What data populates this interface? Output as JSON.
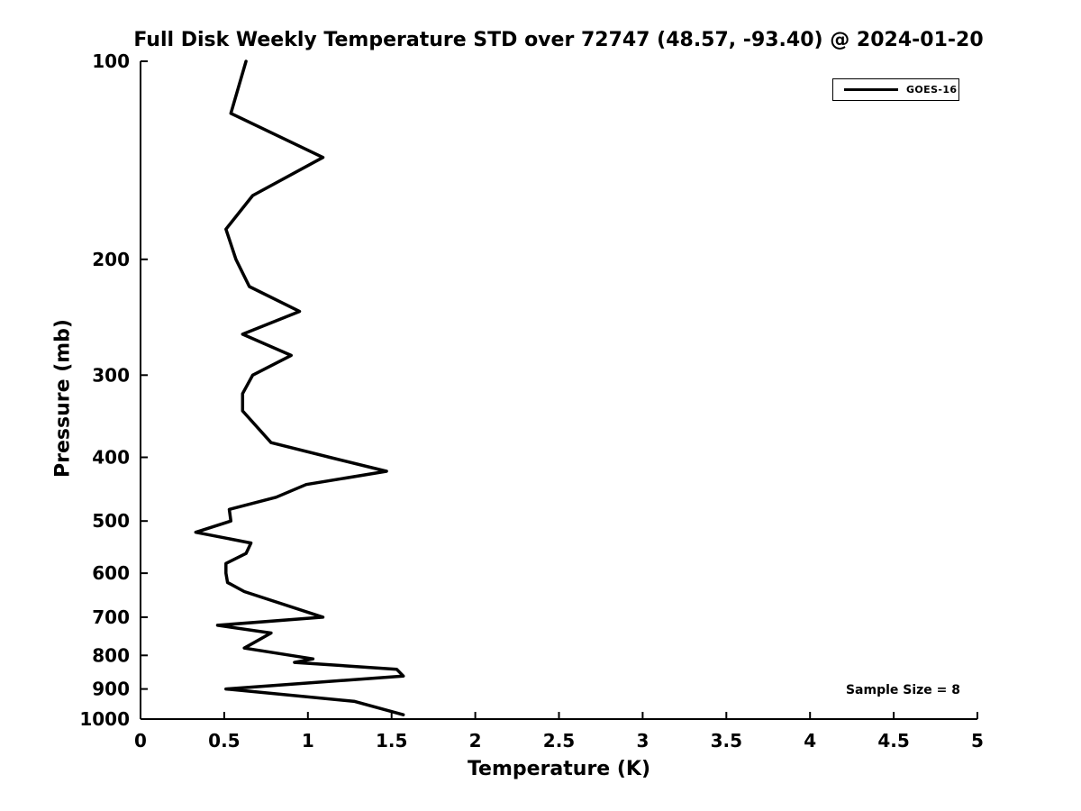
{
  "page": {
    "background": "#ffffff",
    "foreground": "#000000"
  },
  "chart_data": {
    "type": "line",
    "title": "Full Disk Weekly Temperature STD over 72747 (48.57, -93.40) @ 2024-01-20",
    "xlabel": "Temperature (K)",
    "ylabel": "Pressure (mb)",
    "xlim": [
      0,
      5
    ],
    "xticks": [
      0,
      0.5,
      1,
      1.5,
      2,
      2.5,
      3,
      3.5,
      4,
      4.5,
      5
    ],
    "xtick_labels": [
      "0",
      "0.5",
      "1",
      "1.5",
      "2",
      "2.5",
      "3",
      "3.5",
      "4",
      "4.5",
      "5"
    ],
    "yscale": "log",
    "y_inverted": true,
    "ylim": [
      100,
      1000
    ],
    "yticks": [
      100,
      200,
      300,
      400,
      500,
      600,
      700,
      800,
      900,
      1000
    ],
    "ytick_labels": [
      "100",
      "200",
      "300",
      "400",
      "500",
      "600",
      "700",
      "800",
      "900",
      "1000"
    ],
    "grid": false,
    "tick_direction": "in",
    "legend": {
      "position": "top-right",
      "entries": [
        {
          "label": "GOES-16",
          "color": "#000000"
        }
      ]
    },
    "annotation": {
      "text": "Sample Size = 8"
    },
    "series": [
      {
        "name": "GOES-16",
        "color": "#000000",
        "pressure_mb": [
          100,
          120,
          140,
          160,
          180,
          200,
          220,
          240,
          260,
          280,
          300,
          320,
          340,
          380,
          400,
          420,
          440,
          460,
          480,
          500,
          520,
          540,
          560,
          580,
          600,
          620,
          640,
          700,
          720,
          740,
          780,
          810,
          820,
          840,
          860,
          900,
          940,
          985
        ],
        "temperature_k": [
          0.63,
          0.54,
          1.09,
          0.67,
          0.51,
          0.57,
          0.65,
          0.95,
          0.61,
          0.9,
          0.67,
          0.61,
          0.61,
          0.78,
          1.13,
          1.47,
          0.99,
          0.81,
          0.53,
          0.54,
          0.33,
          0.66,
          0.63,
          0.51,
          0.51,
          0.52,
          0.62,
          1.09,
          0.46,
          0.78,
          0.62,
          1.03,
          0.92,
          1.53,
          1.57,
          0.51,
          1.28,
          1.57
        ]
      }
    ]
  }
}
